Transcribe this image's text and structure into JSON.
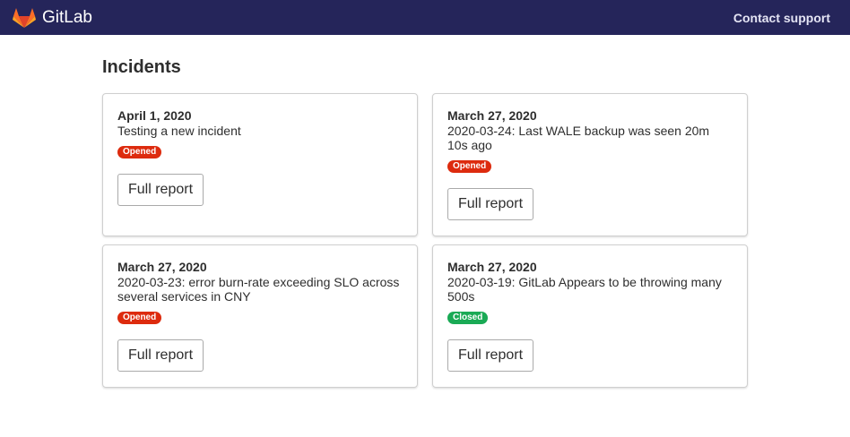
{
  "header": {
    "brand": "GitLab",
    "support_link": "Contact support"
  },
  "page_title": "Incidents",
  "colors": {
    "opened": "#dd2b0e",
    "closed": "#1aaa55",
    "nav": "#25255a"
  },
  "incidents": [
    {
      "date": "April 1, 2020",
      "title": "Testing a new incident",
      "status": "Opened",
      "button": "Full report"
    },
    {
      "date": "March 27, 2020",
      "title": "2020-03-24: Last WALE backup was seen 20m 10s ago",
      "status": "Opened",
      "button": "Full report"
    },
    {
      "date": "March 27, 2020",
      "title": "2020-03-23: error burn-rate exceeding SLO across several services in CNY",
      "status": "Opened",
      "button": "Full report"
    },
    {
      "date": "March 27, 2020",
      "title": "2020-03-19: GitLab Appears to be throwing many 500s",
      "status": "Closed",
      "button": "Full report"
    }
  ]
}
